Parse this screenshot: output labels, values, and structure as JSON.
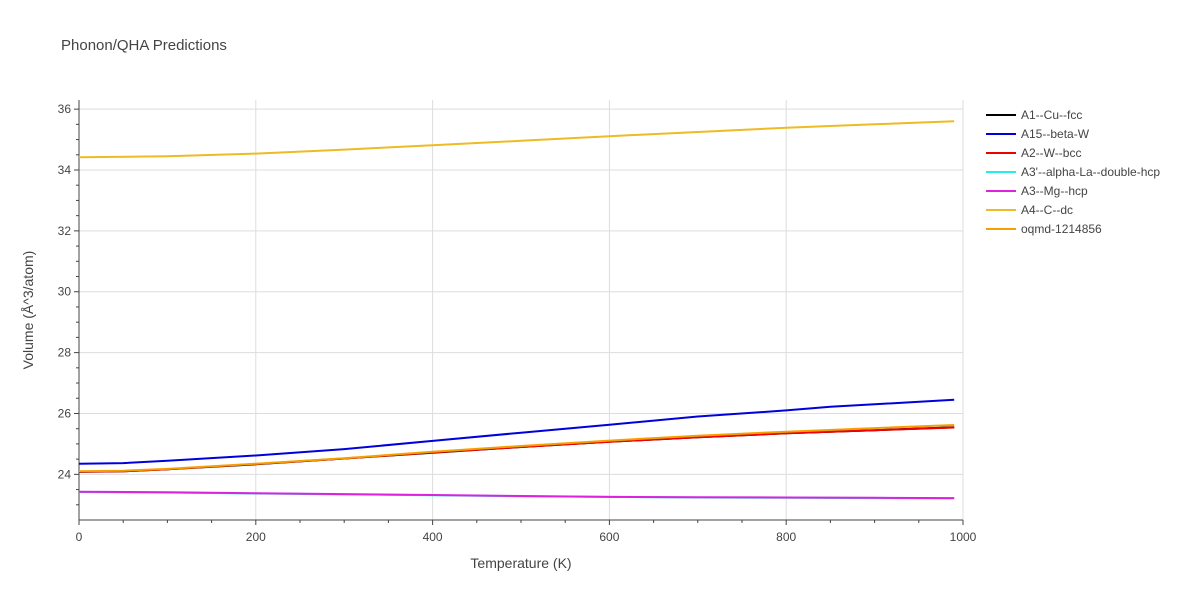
{
  "chart_data": {
    "type": "line",
    "title": "Phonon/QHA Predictions",
    "xlabel": "Temperature (K)",
    "ylabel": "Volume (Å^3/atom)",
    "xlim": [
      0,
      1000
    ],
    "ylim": [
      22.5,
      36.3
    ],
    "x_ticks": [
      0,
      200,
      400,
      600,
      800,
      1000
    ],
    "y_ticks": [
      24,
      26,
      28,
      30,
      32,
      34,
      36
    ],
    "grid": true,
    "legend_position": "right",
    "series": [
      {
        "name": "A1--Cu--fcc",
        "color": "#000000",
        "x": [
          0,
          50,
          100,
          200,
          300,
          400,
          500,
          600,
          700,
          800,
          900,
          990
        ],
        "y": [
          24.08,
          24.1,
          24.17,
          24.33,
          24.52,
          24.71,
          24.9,
          25.07,
          25.22,
          25.35,
          25.45,
          25.55
        ]
      },
      {
        "name": "A15--beta-W",
        "color": "#0000dd",
        "x": [
          0,
          50,
          100,
          200,
          300,
          400,
          500,
          600,
          700,
          800,
          850,
          900,
          990
        ],
        "y": [
          24.35,
          24.37,
          24.45,
          24.62,
          24.83,
          25.1,
          25.37,
          25.63,
          25.9,
          26.1,
          26.22,
          26.3,
          26.45
        ]
      },
      {
        "name": "A2--W--bcc",
        "color": "#ee0000",
        "x": [
          0,
          50,
          100,
          200,
          300,
          400,
          500,
          600,
          700,
          800,
          900,
          990
        ],
        "y": [
          24.09,
          24.1,
          24.17,
          24.34,
          24.52,
          24.72,
          24.9,
          25.07,
          25.22,
          25.35,
          25.45,
          25.54
        ]
      },
      {
        "name": "A3'--alpha-La--double-hcp",
        "color": "#22eeee",
        "x": [
          0,
          100,
          200,
          300,
          400,
          500,
          600,
          700,
          800,
          900,
          990
        ],
        "y": [
          23.42,
          23.4,
          23.37,
          23.34,
          23.31,
          23.28,
          23.26,
          23.24,
          23.23,
          23.22,
          23.21
        ]
      },
      {
        "name": "A3--Mg--hcp",
        "color": "#dd22dd",
        "x": [
          0,
          100,
          200,
          300,
          400,
          500,
          600,
          700,
          800,
          900,
          990
        ],
        "y": [
          23.43,
          23.41,
          23.38,
          23.35,
          23.32,
          23.29,
          23.26,
          23.25,
          23.24,
          23.23,
          23.22
        ]
      },
      {
        "name": "A4--C--dc",
        "color": "#eebb22",
        "x": [
          0,
          100,
          200,
          300,
          400,
          500,
          600,
          700,
          800,
          900,
          990
        ],
        "y": [
          34.42,
          34.45,
          34.54,
          34.67,
          34.81,
          34.96,
          35.11,
          35.25,
          35.39,
          35.5,
          35.6
        ]
      },
      {
        "name": "oqmd-1214856",
        "color": "#f4a100",
        "x": [
          0,
          50,
          100,
          200,
          300,
          400,
          500,
          600,
          700,
          800,
          900,
          990
        ],
        "y": [
          24.1,
          24.12,
          24.18,
          24.35,
          24.53,
          24.74,
          24.93,
          25.11,
          25.27,
          25.4,
          25.52,
          25.62
        ]
      }
    ]
  }
}
